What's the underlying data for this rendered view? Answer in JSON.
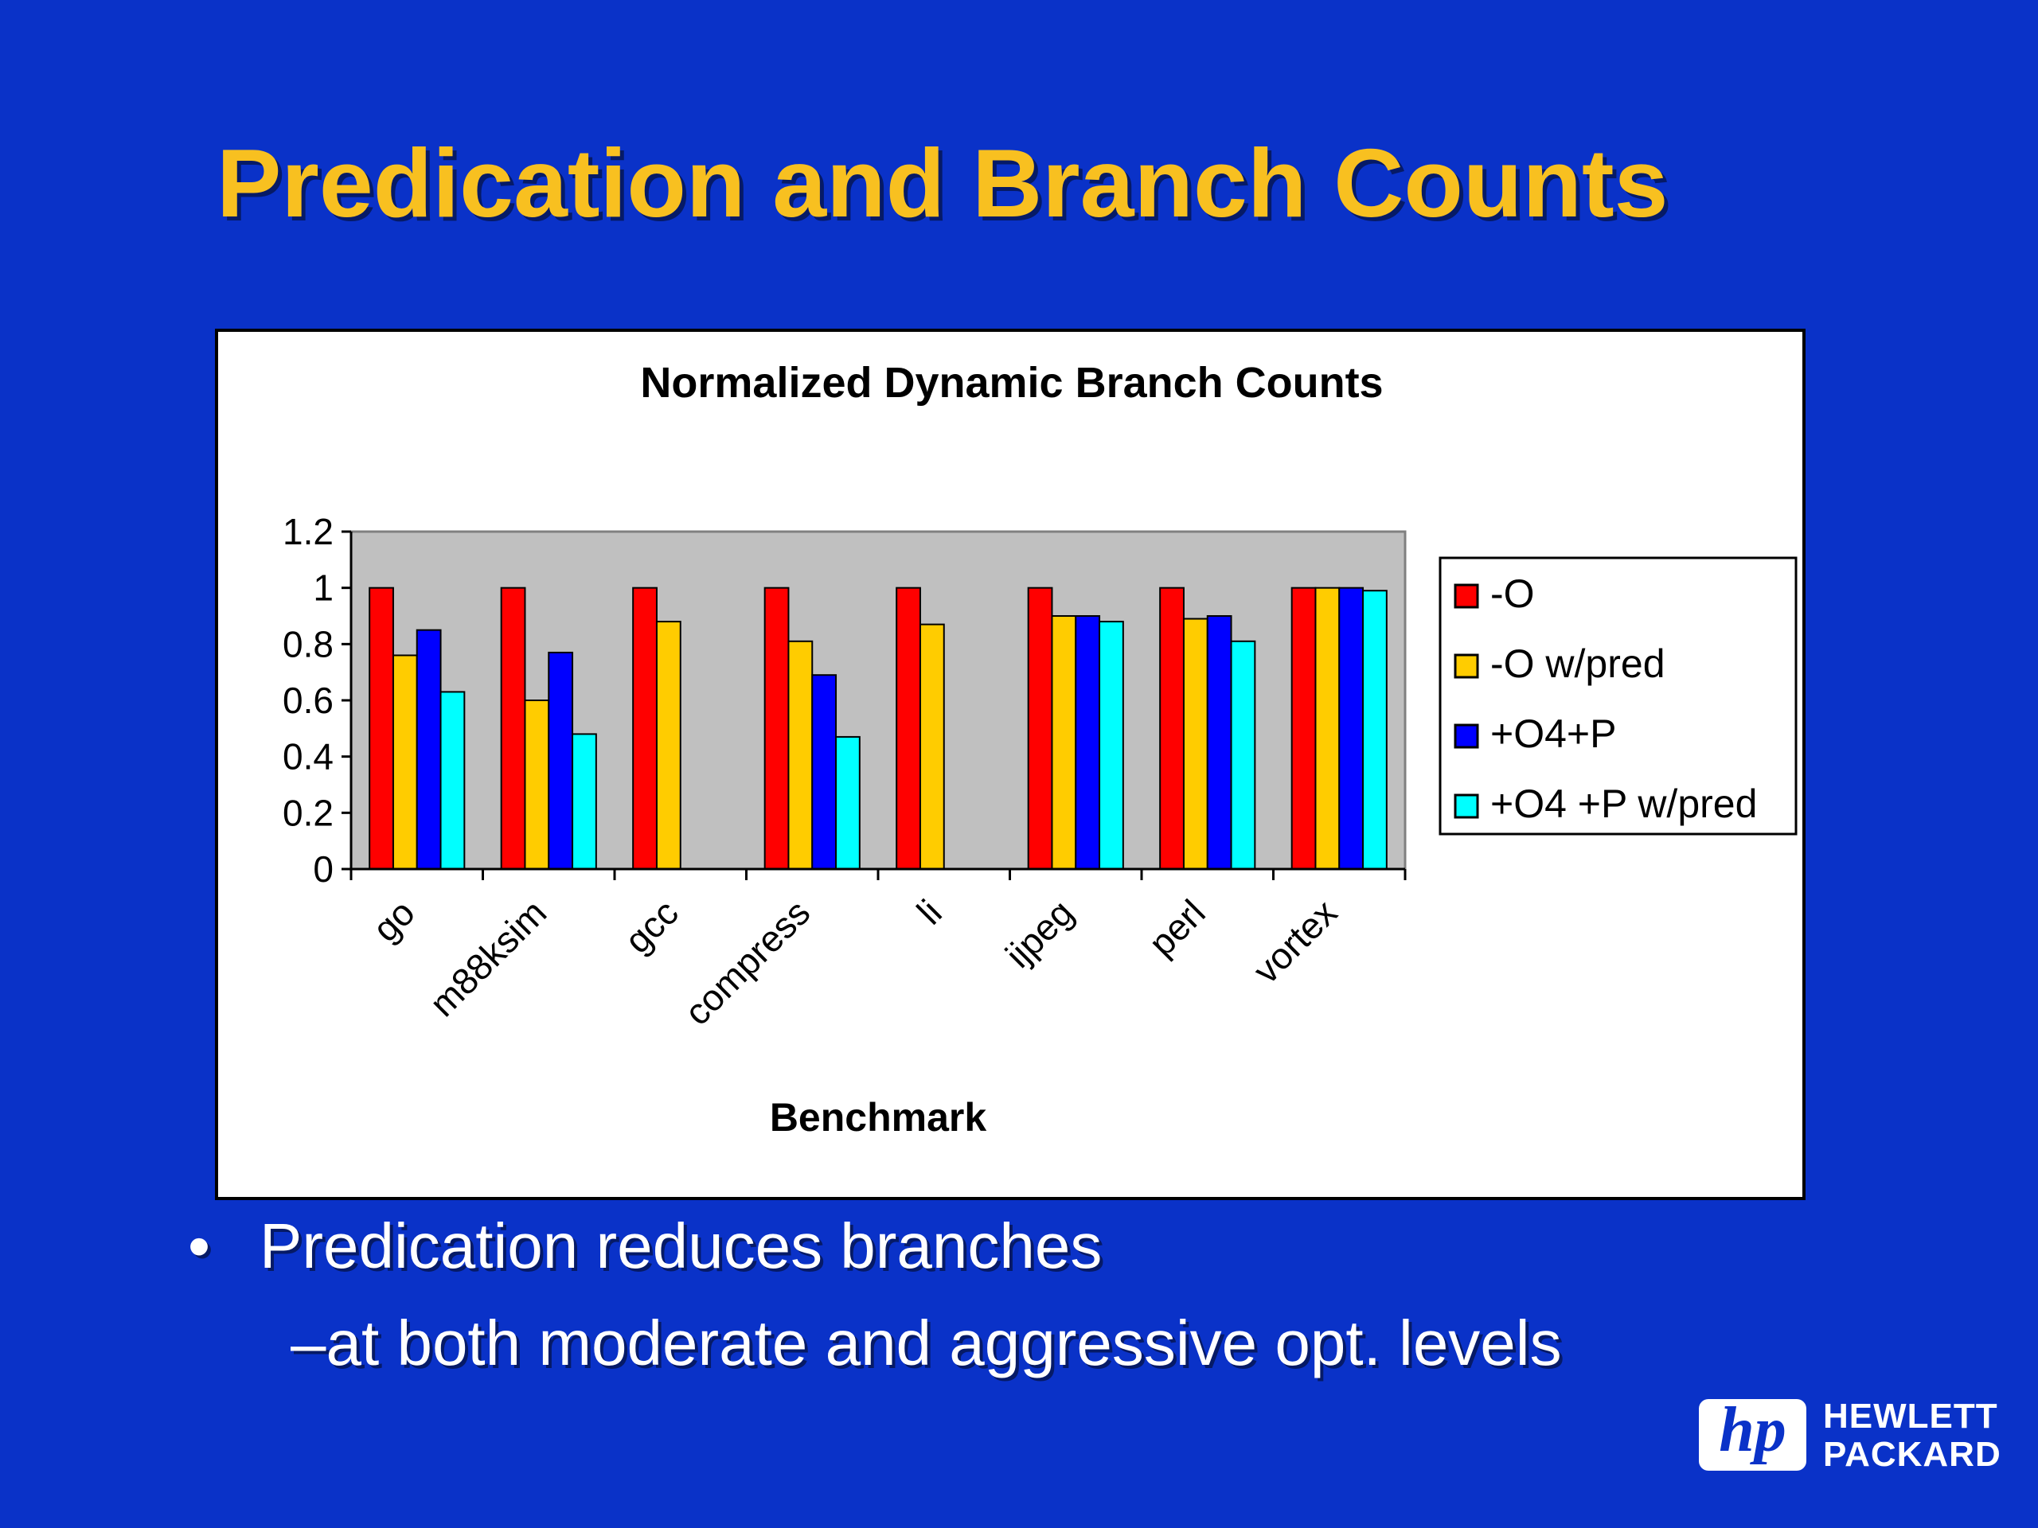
{
  "slide": {
    "title": "Predication and Branch Counts",
    "bullets": [
      {
        "marker": "•",
        "text": "Predication reduces branches"
      },
      {
        "marker": "–",
        "text": "at both moderate and aggressive opt. levels"
      }
    ],
    "logo": {
      "mark": "hp",
      "line1": "HEWLETT",
      "line2": "PACKARD"
    }
  },
  "chart_data": {
    "type": "bar",
    "title": "Normalized Dynamic Branch Counts",
    "xlabel": "Benchmark",
    "ylabel": "",
    "ylim": [
      0,
      1.2
    ],
    "yticks": [
      "0",
      "0.2",
      "0.4",
      "0.6",
      "0.8",
      "1",
      "1.2"
    ],
    "categories": [
      "go",
      "m88ksim",
      "gcc",
      "compress",
      "li",
      "ijpeg",
      "perl",
      "vortex"
    ],
    "series": [
      {
        "name": "-O",
        "color": "#ff0000",
        "values": [
          1.0,
          1.0,
          1.0,
          1.0,
          1.0,
          1.0,
          1.0,
          1.0
        ]
      },
      {
        "name": "-O w/pred",
        "color": "#ffcc00",
        "values": [
          0.76,
          0.6,
          0.88,
          0.81,
          0.87,
          0.9,
          0.89,
          1.0
        ]
      },
      {
        "name": "+O4+P",
        "color": "#0000ff",
        "values": [
          0.85,
          0.77,
          null,
          0.69,
          null,
          0.9,
          0.9,
          1.0
        ]
      },
      {
        "name": "+O4 +P w/pred",
        "color": "#00ffff",
        "values": [
          0.63,
          0.48,
          null,
          0.47,
          null,
          0.88,
          0.81,
          0.99
        ]
      }
    ],
    "plot_background": "#c0c0c0",
    "legend_position": "right",
    "grid": false
  }
}
